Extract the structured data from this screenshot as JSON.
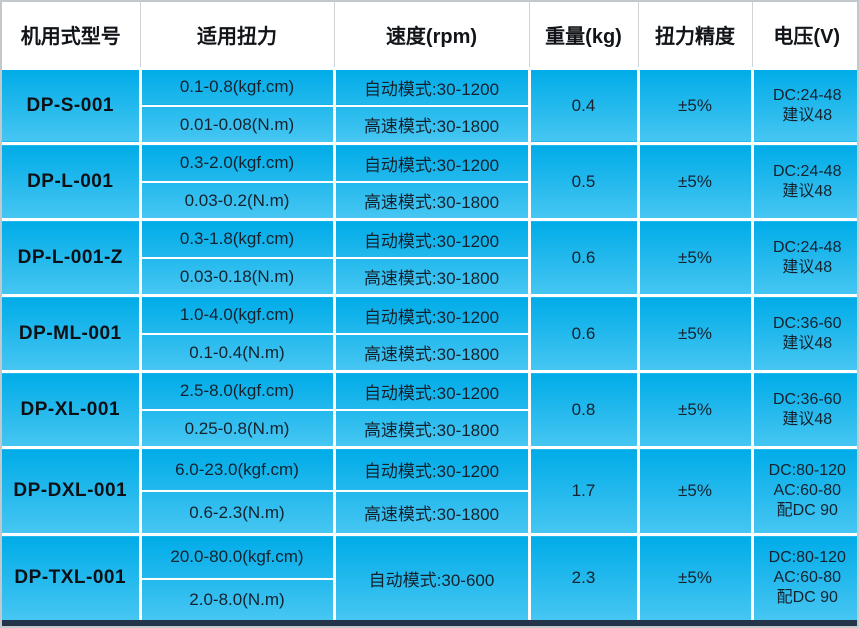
{
  "table": {
    "headers": [
      "机用式型号",
      "适用扭力",
      "速度(rpm)",
      "重量(kg)",
      "扭力精度",
      "电压(V)"
    ],
    "rows": [
      {
        "model": "DP-S-001",
        "torque_kgf": "0.1-0.8(kgf.cm)",
        "torque_nm": "0.01-0.08(N.m)",
        "speed_auto": "自动模式:30-1200",
        "speed_high": "高速模式:30-1800",
        "weight": "0.4",
        "precision": "±5%",
        "voltage": [
          "DC:24-48",
          "建议48"
        ]
      },
      {
        "model": "DP-L-001",
        "torque_kgf": "0.3-2.0(kgf.cm)",
        "torque_nm": "0.03-0.2(N.m)",
        "speed_auto": "自动模式:30-1200",
        "speed_high": "高速模式:30-1800",
        "weight": "0.5",
        "precision": "±5%",
        "voltage": [
          "DC:24-48",
          "建议48"
        ]
      },
      {
        "model": "DP-L-001-Z",
        "torque_kgf": "0.3-1.8(kgf.cm)",
        "torque_nm": "0.03-0.18(N.m)",
        "speed_auto": "自动模式:30-1200",
        "speed_high": "高速模式:30-1800",
        "weight": "0.6",
        "precision": "±5%",
        "voltage": [
          "DC:24-48",
          "建议48"
        ]
      },
      {
        "model": "DP-ML-001",
        "torque_kgf": "1.0-4.0(kgf.cm)",
        "torque_nm": "0.1-0.4(N.m)",
        "speed_auto": "自动模式:30-1200",
        "speed_high": "高速模式:30-1800",
        "weight": "0.6",
        "precision": "±5%",
        "voltage": [
          "DC:36-60",
          "建议48"
        ]
      },
      {
        "model": "DP-XL-001",
        "torque_kgf": "2.5-8.0(kgf.cm)",
        "torque_nm": "0.25-0.8(N.m)",
        "speed_auto": "自动模式:30-1200",
        "speed_high": "高速模式:30-1800",
        "weight": "0.8",
        "precision": "±5%",
        "voltage": [
          "DC:36-60",
          "建议48"
        ]
      },
      {
        "model": "DP-DXL-001",
        "torque_kgf": "6.0-23.0(kgf.cm)",
        "torque_nm": "0.6-2.3(N.m)",
        "speed_auto": "自动模式:30-1200",
        "speed_high": "高速模式:30-1800",
        "weight": "1.7",
        "precision": "±5%",
        "voltage": [
          "DC:80-120",
          "AC:60-80",
          "配DC 90"
        ]
      },
      {
        "model": "DP-TXL-001",
        "torque_kgf": "20.0-80.0(kgf.cm)",
        "torque_nm": "2.0-8.0(N.m)",
        "speed_auto": "自动模式:30-600",
        "speed_high": null,
        "weight": "2.3",
        "precision": "±5%",
        "voltage": [
          "DC:80-120",
          "AC:60-80",
          "配DC 90"
        ]
      }
    ]
  },
  "colors": {
    "gradient_top": "#00ace8",
    "gradient_mid": "#23b9ed",
    "gradient_bottom": "#47c6f2",
    "separator": "#ffffff",
    "header_bg": "#ffffff",
    "header_text": "#111418",
    "cell_text": "#15222e",
    "frame_border": "#c3c8cd",
    "bottom_bar": "#22334a"
  }
}
